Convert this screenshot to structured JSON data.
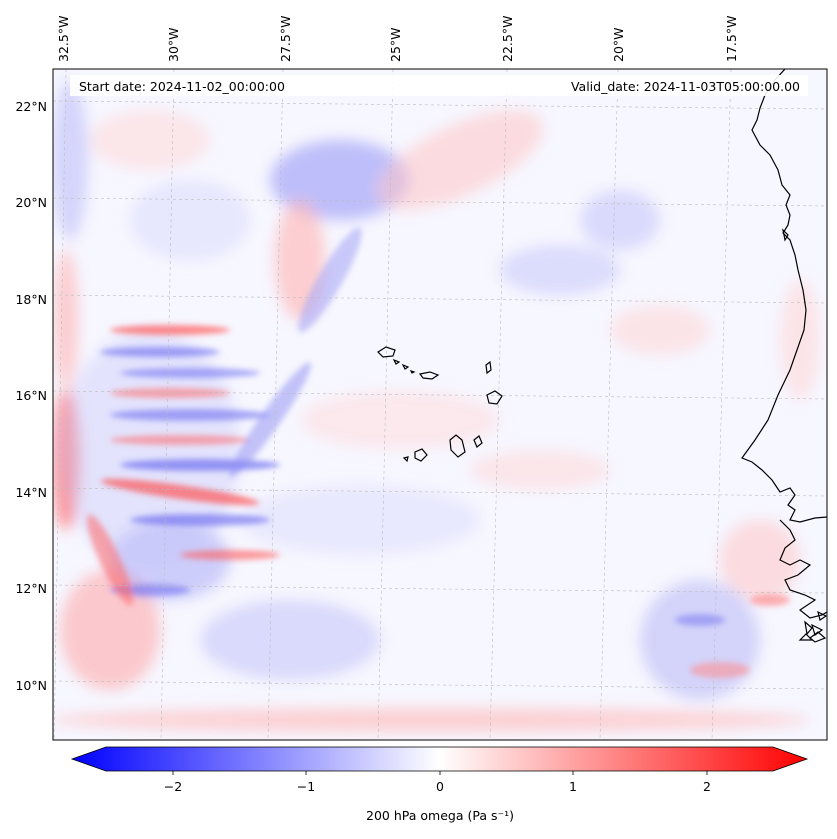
{
  "map": {
    "start_date": "Start date: 2024-11-02_00:00:00",
    "valid_date": "Valid_date: 2024-11-03T05:00:00.00",
    "lon_labels": [
      "32.5°W",
      "30°W",
      "27.5°W",
      "25°W",
      "22.5°W",
      "20°W",
      "17.5°W"
    ],
    "lon_values": [
      -32.5,
      -30,
      -27.5,
      -25,
      -22.5,
      -20,
      -17.5
    ],
    "lat_labels": [
      "22°N",
      "20°N",
      "18°N",
      "16°N",
      "14°N",
      "12°N",
      "10°N"
    ],
    "lat_values": [
      22,
      20,
      18,
      16,
      14,
      12,
      10
    ],
    "lon_range": [
      -33.1,
      -15.2
    ],
    "lat_range": [
      8.9,
      22.8
    ]
  },
  "colorbar": {
    "label": "200 hPa omega (Pa s⁻¹)",
    "range": [
      -2.5,
      2.5
    ],
    "ticks": [
      -2,
      -1,
      0,
      1,
      2
    ],
    "tick_labels": [
      "−2",
      "−1",
      "0",
      "1",
      "2"
    ],
    "colors": {
      "min": "#0000ff",
      "mid": "#ffffff",
      "max": "#ff0000"
    }
  }
}
